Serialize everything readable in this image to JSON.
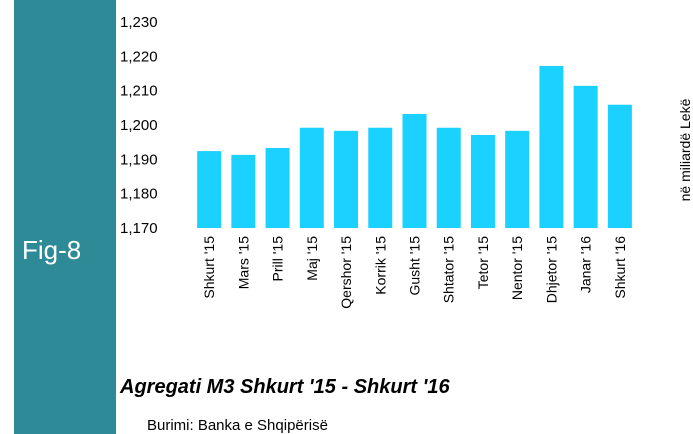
{
  "fig_label": "Fig-8",
  "chart_data": {
    "type": "bar",
    "title": "Agregati M3 Shkurt '15 - Shkurt '16",
    "source": "Burimi: Banka e Shqipërisë",
    "y_label": "në miliardë Lekë",
    "categories": [
      "Shkurt '15",
      "Mars '15",
      "Prill '15",
      "Maj '15",
      "Qershor '15",
      "Korrik '15",
      "Gusht '15",
      "Shtator '15",
      "Tetor '15",
      "Nentor '15",
      "Dhjetor '15",
      "Janar '16",
      "Shkurt '16"
    ],
    "values": [
      1192.4,
      1191.3,
      1193.3,
      1199.2,
      1198.3,
      1199.2,
      1203.2,
      1199.2,
      1197.1,
      1198.3,
      1217.2,
      1211.4,
      1205.9
    ],
    "color": "#1ad1ff",
    "ylim": [
      1170,
      1230
    ],
    "yticks": [
      {
        "value": 1170,
        "label": "1,170"
      },
      {
        "value": 1180,
        "label": "1,180"
      },
      {
        "value": 1190,
        "label": "1,190"
      },
      {
        "value": 1200,
        "label": "1,200"
      },
      {
        "value": 1210,
        "label": "1,210"
      },
      {
        "value": 1220,
        "label": "1,220"
      },
      {
        "value": 1230,
        "label": "1,230"
      }
    ],
    "grid": false
  }
}
